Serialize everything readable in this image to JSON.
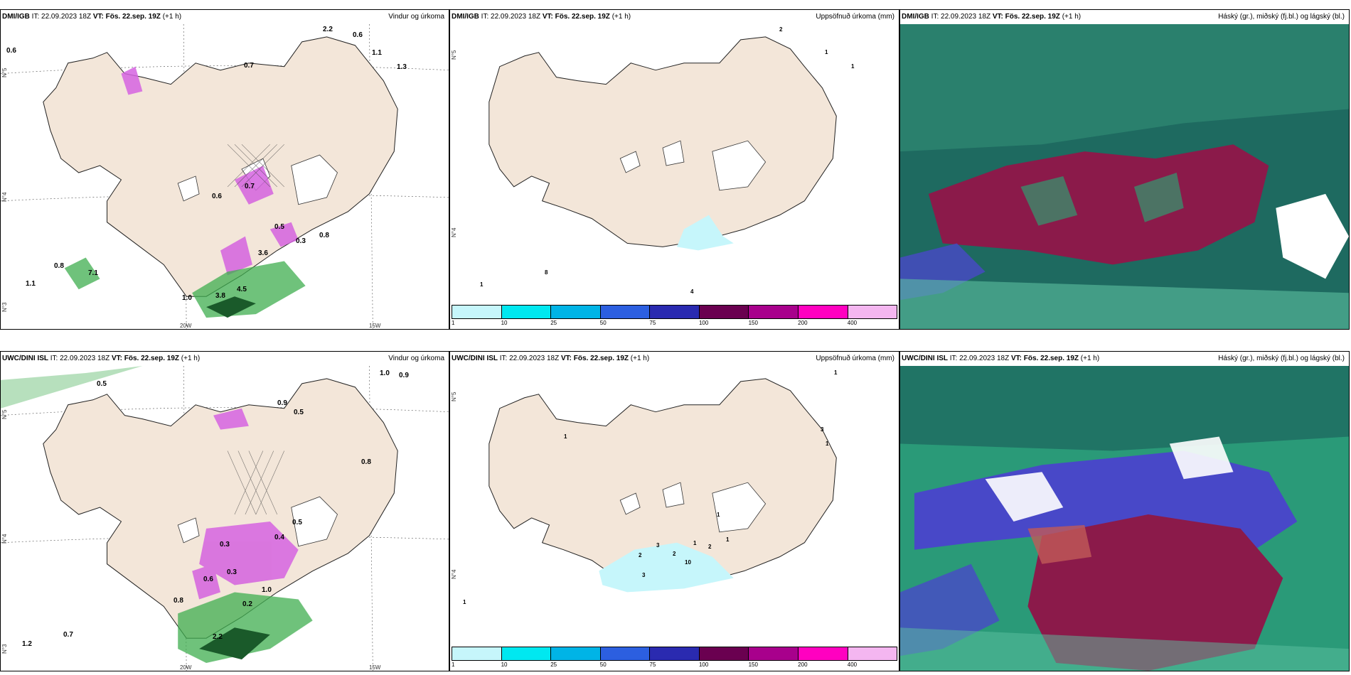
{
  "panels": [
    {
      "id": "p1",
      "model": "DMI/IGB",
      "it_label": "IT:",
      "it": "22.09.2023 18Z",
      "vt_label": "VT:",
      "vt": "Fös. 22.sep. 19Z",
      "lead": "(+1 h)",
      "title": "Vindur og úrkoma",
      "values": [
        "0.6",
        "2.2",
        "0.6",
        "1.1",
        "1.3",
        "0.7",
        "0.6",
        "0.7",
        "0.5",
        "0.3",
        "0.8",
        "3.6",
        "0.8",
        "7.1",
        "1.1",
        "1.0",
        "3.8",
        "4.5"
      ],
      "axes": {
        "lat": [
          "N°5",
          "N°4",
          "N°3"
        ],
        "lon": [
          "20W",
          "15W"
        ]
      }
    },
    {
      "id": "p2",
      "model": "DMI/IGB",
      "it_label": "IT:",
      "it": "22.09.2023 18Z",
      "vt_label": "VT:",
      "vt": "Fös. 22.sep. 19Z",
      "lead": "(+1 h)",
      "title": "Uppsöfnuð úrkoma (mm)",
      "values": [
        "2",
        "1",
        "1",
        "8",
        "1",
        "4"
      ],
      "axes": {
        "lat": [
          "N°5",
          "N°4"
        ]
      }
    },
    {
      "id": "p3",
      "model": "DMI/IGB",
      "it_label": "IT:",
      "it": "22.09.2023 18Z",
      "vt_label": "VT:",
      "vt": "Fös. 22.sep. 19Z",
      "lead": "(+1 h)",
      "title": "Háský (gr.), miðský (fj.bl.) og lágský (bl.)"
    },
    {
      "id": "p4",
      "model": "UWC/DINI ISL",
      "it_label": "IT:",
      "it": "22.09.2023 18Z",
      "vt_label": "VT:",
      "vt": "Fös. 22.sep. 19Z",
      "lead": "(+1 h)",
      "title": "Vindur og úrkoma",
      "values": [
        "0.5",
        "1.0",
        "0.9",
        "0.5",
        "0.9",
        "0.8",
        "0.5",
        "0.4",
        "0.3",
        "0.3",
        "0.6",
        "0.8",
        "0.2",
        "1.2",
        "0.7",
        "2.2",
        "1.0"
      ],
      "axes": {
        "lat": [
          "N°5",
          "N°4",
          "N°3"
        ],
        "lon": [
          "20W",
          "15W"
        ]
      }
    },
    {
      "id": "p5",
      "model": "UWC/DINI ISL",
      "it_label": "IT:",
      "it": "22.09.2023 18Z",
      "vt_label": "VT:",
      "vt": "Fös. 22.sep. 19Z",
      "lead": "(+1 h)",
      "title": "Uppsöfnuð úrkoma (mm)",
      "values": [
        "1",
        "1",
        "3",
        "1",
        "1",
        "1",
        "2",
        "3",
        "2",
        "10",
        "1",
        "2",
        "3",
        "1"
      ],
      "axes": {
        "lat": [
          "N°5",
          "N°4"
        ]
      }
    },
    {
      "id": "p6",
      "model": "UWC/DINI ISL",
      "it_label": "IT:",
      "it": "22.09.2023 18Z",
      "vt_label": "VT:",
      "vt": "Fös. 22.sep. 19Z",
      "lead": "(+1 h)",
      "title": "Háský (gr.), miðský (fj.bl.) og lágský (bl.)"
    }
  ],
  "legend": {
    "ticks": [
      "1",
      "10",
      "25",
      "50",
      "75",
      "100",
      "150",
      "200",
      "400"
    ],
    "colors": [
      "#c6f6fb",
      "#00e8f0",
      "#00b4e6",
      "#2c5fe0",
      "#2a2ab0",
      "#6a0050",
      "#a8008c",
      "#ff00c0",
      "#f4b6f0"
    ]
  },
  "colors": {
    "land": "#f3e6d9",
    "coast": "#222222",
    "ice": "#ffffff",
    "rain_green": "#3fae4f",
    "rain_pink": "#d563e0",
    "cloud_high": "#1e8a6c",
    "cloud_mid": "#8b1a4a",
    "cloud_low": "#4848c8"
  }
}
